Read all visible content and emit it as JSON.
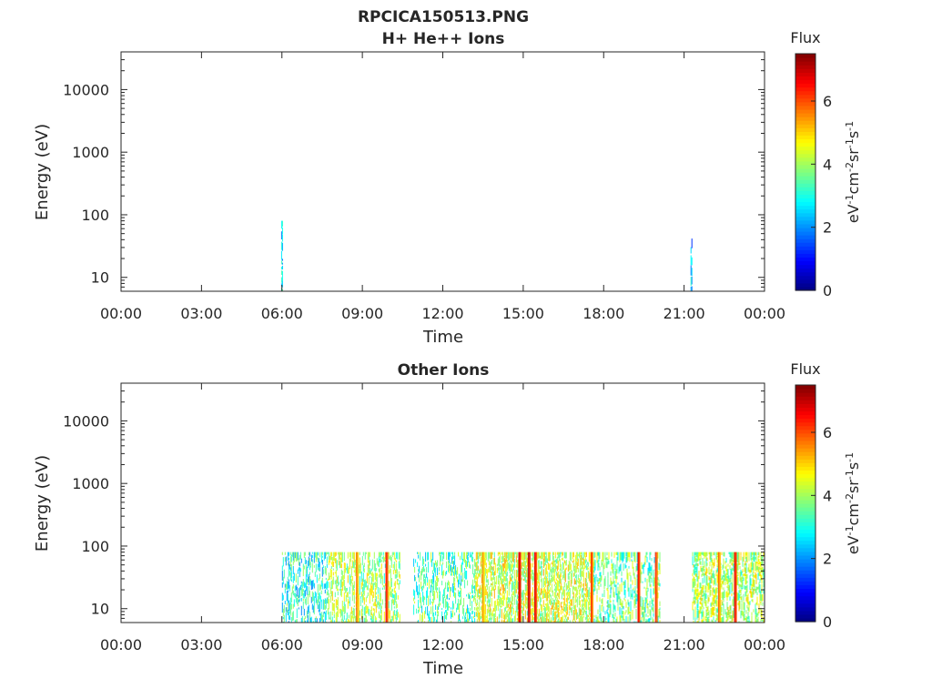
{
  "figure_title": "RPCICA150513.PNG",
  "colors": {
    "axis": "#262626",
    "background": "#ffffff"
  },
  "chart_data": [
    {
      "type": "heatmap",
      "title": "H+ He++ Ions",
      "xlabel": "Time",
      "ylabel": "Energy (eV)",
      "x_ticks": [
        "00:00",
        "03:00",
        "06:00",
        "09:00",
        "12:00",
        "15:00",
        "18:00",
        "21:00",
        "00:00"
      ],
      "x_range_hours": [
        0,
        24
      ],
      "y_scale": "log",
      "y_range": [
        6,
        40000
      ],
      "y_ticks": [
        {
          "value": 10,
          "label": "10"
        },
        {
          "value": 100,
          "label": "100"
        },
        {
          "value": 1000,
          "label": "1000"
        },
        {
          "value": 10000,
          "label": "10000"
        }
      ],
      "colorbar": {
        "title": "Flux",
        "units": "eV-1cm-2sr-1s-1",
        "range": [
          0,
          7.5
        ],
        "ticks": [
          0,
          2,
          4,
          6
        ],
        "colormap": "jet"
      },
      "blocks": [
        {
          "t0": 5.97,
          "t1": 6.05,
          "e0": 6,
          "e1": 80,
          "density": 0.9,
          "level": 2.5
        },
        {
          "t0": 21.24,
          "t1": 21.3,
          "e0": 6,
          "e1": 80,
          "density": 0.6,
          "level": 2.4
        }
      ],
      "hot_lines": []
    },
    {
      "type": "heatmap",
      "title": "Other Ions",
      "xlabel": "Time",
      "ylabel": "Energy (eV)",
      "x_ticks": [
        "00:00",
        "03:00",
        "06:00",
        "09:00",
        "12:00",
        "15:00",
        "18:00",
        "21:00",
        "00:00"
      ],
      "x_range_hours": [
        0,
        24
      ],
      "y_scale": "log",
      "y_range": [
        6,
        40000
      ],
      "y_ticks": [
        {
          "value": 10,
          "label": "10"
        },
        {
          "value": 100,
          "label": "100"
        },
        {
          "value": 1000,
          "label": "1000"
        },
        {
          "value": 10000,
          "label": "10000"
        }
      ],
      "colorbar": {
        "title": "Flux",
        "units": "eV-1cm-2sr-1s-1",
        "range": [
          0,
          7.5
        ],
        "ticks": [
          0,
          2,
          4,
          6
        ],
        "colormap": "jet"
      },
      "blocks": [
        {
          "t0": 6.0,
          "t1": 7.7,
          "e0": 6,
          "e1": 80,
          "density": 0.55,
          "level": 3.0
        },
        {
          "t0": 7.7,
          "t1": 10.4,
          "e0": 6,
          "e1": 80,
          "density": 0.6,
          "level": 4.0
        },
        {
          "t0": 10.9,
          "t1": 13.2,
          "e0": 6,
          "e1": 80,
          "density": 0.45,
          "level": 3.4
        },
        {
          "t0": 13.2,
          "t1": 17.6,
          "e0": 6,
          "e1": 80,
          "density": 0.75,
          "level": 4.3
        },
        {
          "t0": 17.6,
          "t1": 20.1,
          "e0": 6,
          "e1": 80,
          "density": 0.5,
          "level": 3.6
        },
        {
          "t0": 21.3,
          "t1": 24.0,
          "e0": 6,
          "e1": 80,
          "density": 0.65,
          "level": 4.0
        }
      ],
      "hot_lines": [
        {
          "t": 8.8,
          "level": 5.8
        },
        {
          "t": 9.9,
          "level": 6.6
        },
        {
          "t": 13.5,
          "level": 5.6
        },
        {
          "t": 14.85,
          "level": 7.0
        },
        {
          "t": 15.2,
          "level": 7.2
        },
        {
          "t": 15.45,
          "level": 6.8
        },
        {
          "t": 17.55,
          "level": 6.2
        },
        {
          "t": 19.3,
          "level": 6.6
        },
        {
          "t": 19.95,
          "level": 6.4
        },
        {
          "t": 22.3,
          "level": 5.9
        },
        {
          "t": 22.9,
          "level": 6.8
        }
      ]
    }
  ]
}
